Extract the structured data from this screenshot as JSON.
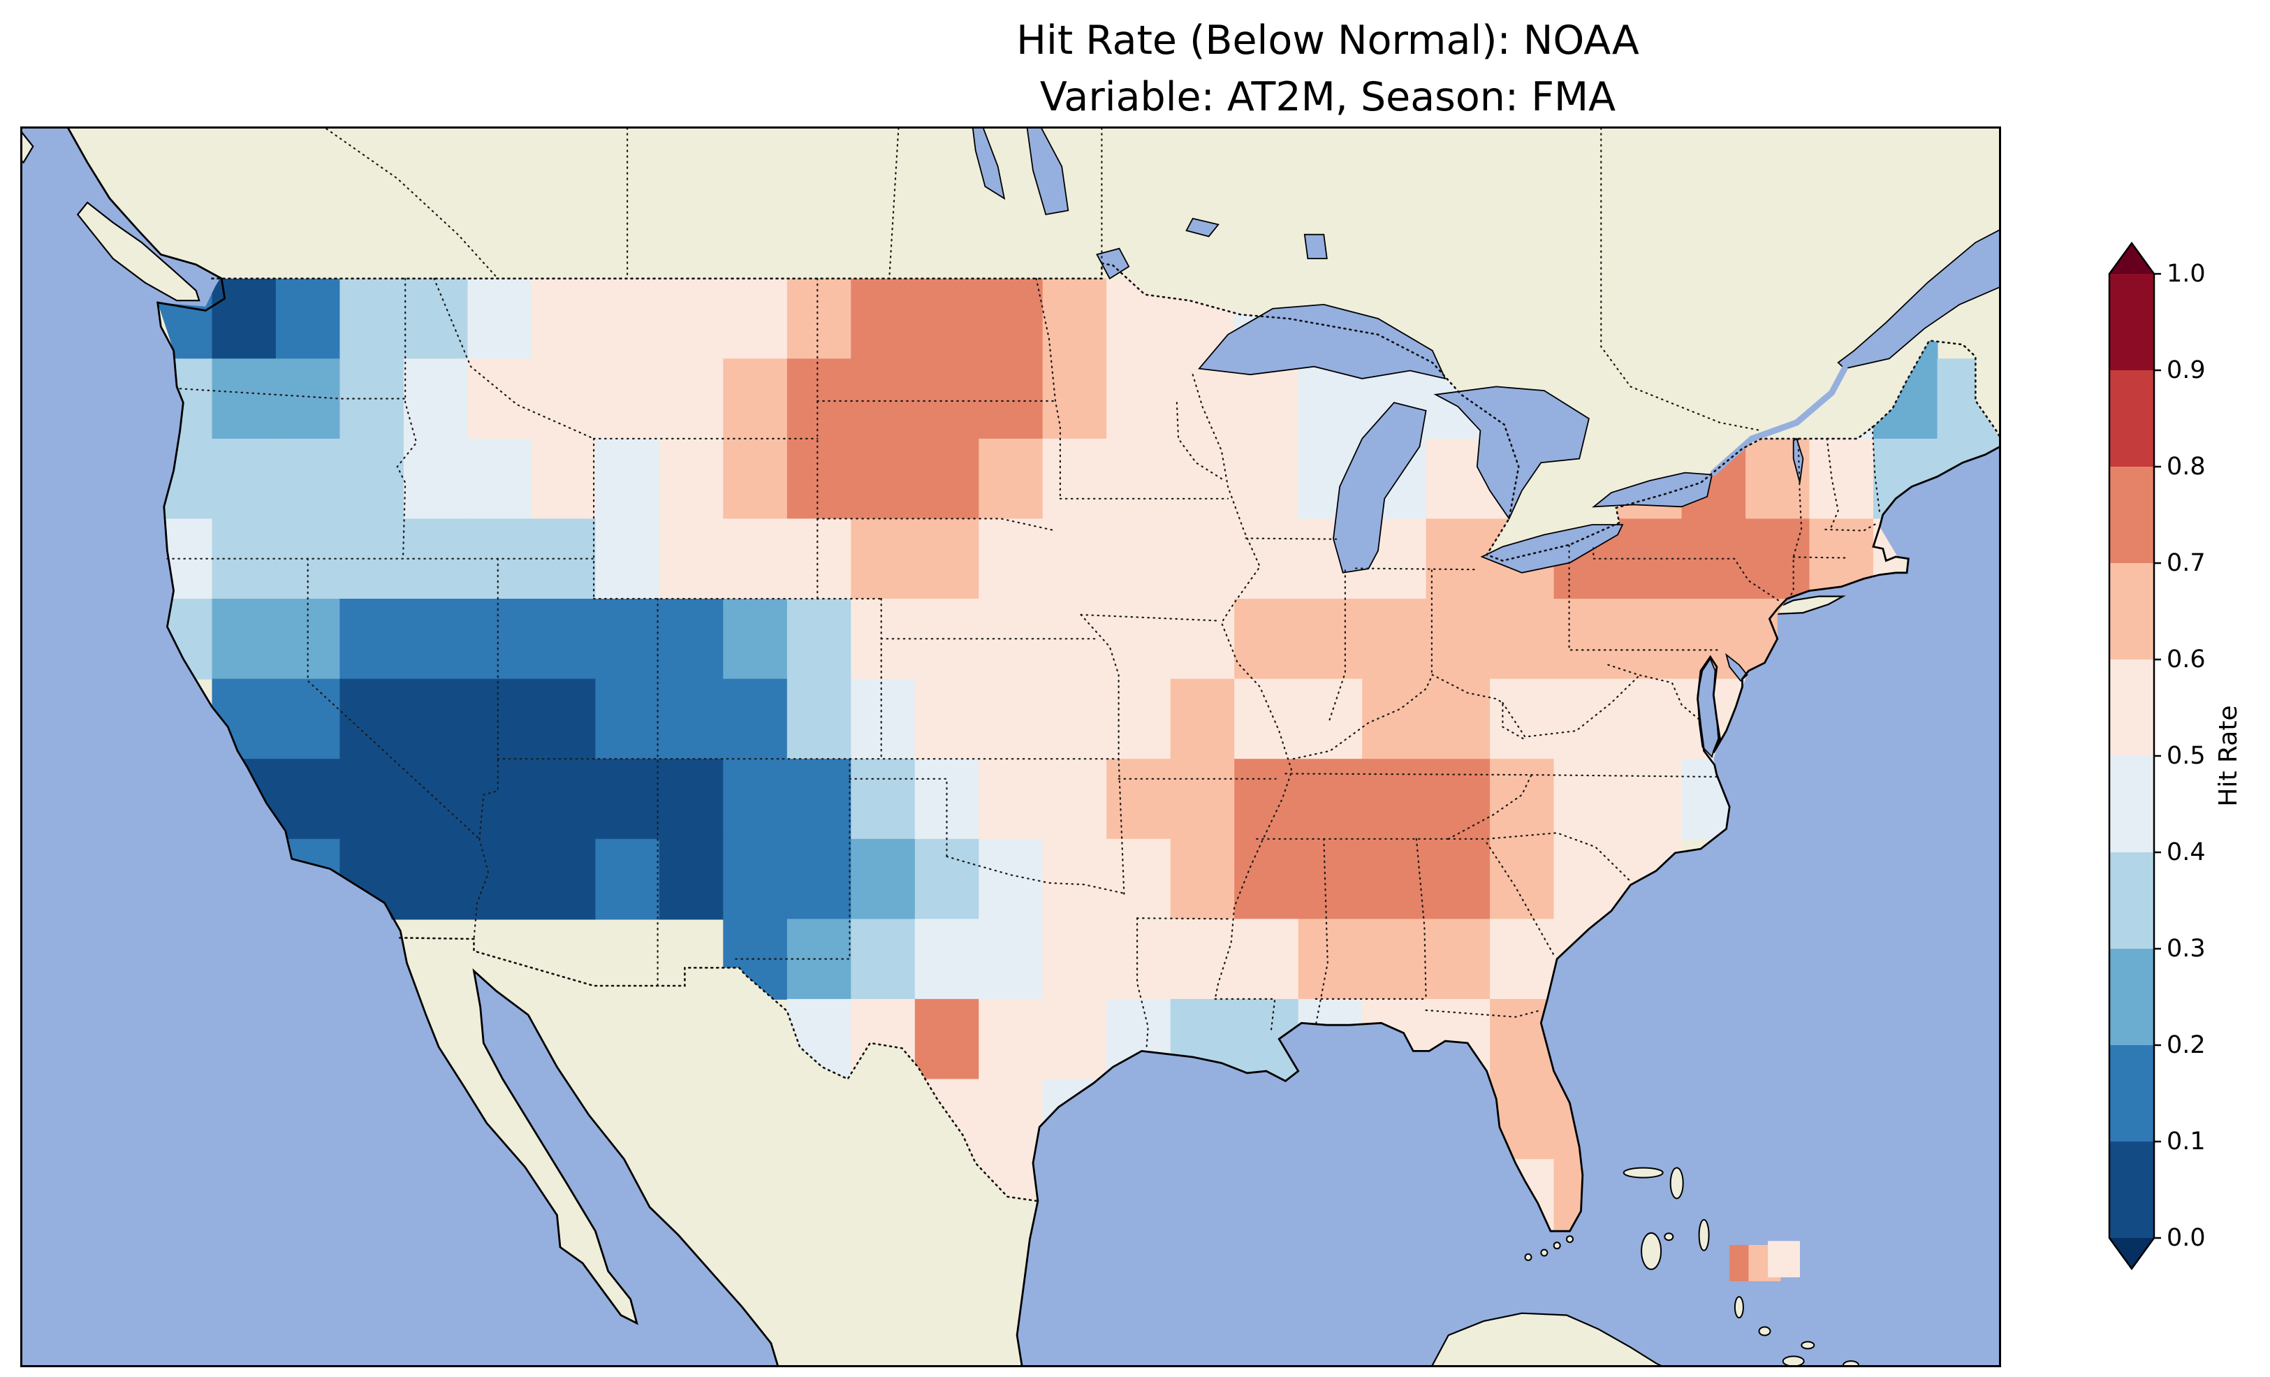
{
  "figure": {
    "title_line1": "Hit Rate (Below Normal): NOAA",
    "title_line2": "Variable: AT2M, Season: FMA"
  },
  "chart_data": {
    "type": "heatmap",
    "title": "Hit Rate (Below Normal): NOAA",
    "subtitle": "Variable: AT2M, Season: FMA",
    "metric": "Hit Rate (Below Normal)",
    "dataset": "NOAA",
    "variable": "AT2M",
    "season": "FMA",
    "colorbar": {
      "label": "Hit Rate",
      "ticks": [
        0.0,
        0.1,
        0.2,
        0.3,
        0.4,
        0.5,
        0.6,
        0.7,
        0.8,
        0.9,
        1.0
      ],
      "tick_labels": [
        "0.0",
        "0.1",
        "0.2",
        "0.3",
        "0.4",
        "0.5",
        "0.6",
        "0.7",
        "0.8",
        "0.9",
        "1.0"
      ],
      "boundaries": [
        0.0,
        0.1,
        0.2,
        0.3,
        0.4,
        0.5,
        0.6,
        0.7,
        0.8,
        0.9,
        1.0
      ],
      "extend": "both",
      "colors": [
        "#053061",
        "#134c85",
        "#2f79b5",
        "#6bacd1",
        "#b2d5e7",
        "#e5eef4",
        "#fbe9df",
        "#f9c0a5",
        "#e58368",
        "#c43c3c",
        "#8d0c25",
        "#67001f"
      ]
    },
    "map": {
      "ocean_color": "#95afdf",
      "land_color": "#efeeda",
      "lake_color": "#95afdf",
      "extent": {
        "lon_min": -129,
        "lon_max": -67,
        "lat_min": 21.8,
        "lat_max": 52.8
      }
    },
    "grid": {
      "lon_start": -125,
      "dlon": 2,
      "lat_start": 49,
      "dlat": 2,
      "ncols": 29,
      "nrows": 12,
      "values": [
        [
          0.15,
          0.05,
          0.15,
          0.3,
          0.35,
          0.45,
          0.55,
          0.55,
          0.55,
          0.55,
          0.65,
          0.75,
          0.75,
          0.75,
          0.6,
          0.55,
          0.55,
          0.45,
          0.35,
          0.35,
          0.45,
          null,
          null,
          null,
          null,
          null,
          null,
          0.25,
          null
        ],
        [
          0.35,
          0.2,
          0.25,
          0.35,
          0.45,
          0.55,
          0.55,
          0.55,
          0.55,
          0.6,
          0.7,
          0.75,
          0.75,
          0.7,
          0.6,
          0.55,
          0.55,
          0.5,
          0.45,
          0.4,
          0.45,
          0.4,
          null,
          null,
          null,
          null,
          0.45,
          0.25,
          0.3
        ],
        [
          0.35,
          0.3,
          0.35,
          0.3,
          0.4,
          0.45,
          0.5,
          0.45,
          0.5,
          0.6,
          0.7,
          0.75,
          0.7,
          0.65,
          0.55,
          0.55,
          0.55,
          0.5,
          0.45,
          0.4,
          0.5,
          0.55,
          0.6,
          0.65,
          0.7,
          0.6,
          0.5,
          0.35,
          0.35
        ],
        [
          0.4,
          0.35,
          0.3,
          0.3,
          0.35,
          0.35,
          0.35,
          0.45,
          0.5,
          0.55,
          0.55,
          0.6,
          0.6,
          0.55,
          0.55,
          0.55,
          0.55,
          0.5,
          0.5,
          0.55,
          0.6,
          0.65,
          0.7,
          0.75,
          0.75,
          0.7,
          0.6,
          0.5,
          null
        ],
        [
          0.3,
          0.25,
          0.2,
          0.15,
          0.1,
          0.1,
          0.1,
          0.1,
          0.15,
          0.2,
          0.35,
          0.5,
          0.55,
          0.55,
          0.55,
          0.55,
          0.55,
          0.6,
          0.6,
          0.65,
          0.6,
          0.65,
          0.6,
          0.65,
          0.6,
          0.6,
          null,
          null,
          null
        ],
        [
          null,
          0.1,
          0.1,
          0.05,
          0.05,
          0.05,
          0.05,
          0.1,
          0.1,
          0.15,
          0.3,
          0.45,
          0.55,
          0.55,
          0.55,
          0.55,
          0.6,
          0.55,
          0.55,
          0.6,
          0.6,
          0.55,
          0.55,
          0.55,
          0.5,
          0.45,
          null,
          null,
          null
        ],
        [
          null,
          0.05,
          0.05,
          0.05,
          0.05,
          0.05,
          0.05,
          0.05,
          0.05,
          0.1,
          0.15,
          0.3,
          0.45,
          0.55,
          0.55,
          0.6,
          0.65,
          0.7,
          0.75,
          0.75,
          0.7,
          0.6,
          0.55,
          0.55,
          0.45,
          null,
          null,
          null,
          null
        ],
        [
          null,
          null,
          0.15,
          0.05,
          0.05,
          0.05,
          0.05,
          0.1,
          0.05,
          0.1,
          0.15,
          0.25,
          0.35,
          0.45,
          0.5,
          0.55,
          0.6,
          0.7,
          0.75,
          0.75,
          0.75,
          0.65,
          0.55,
          0.5,
          null,
          null,
          null,
          null,
          null
        ],
        [
          null,
          null,
          null,
          null,
          null,
          null,
          null,
          null,
          null,
          0.15,
          0.2,
          0.3,
          0.4,
          0.45,
          0.5,
          0.5,
          0.5,
          0.55,
          0.65,
          0.6,
          0.6,
          0.55,
          0.5,
          null,
          null,
          null,
          null,
          null,
          null
        ],
        [
          null,
          null,
          null,
          null,
          null,
          null,
          null,
          null,
          null,
          null,
          0.4,
          0.55,
          0.7,
          0.55,
          0.5,
          0.45,
          0.35,
          0.3,
          0.45,
          0.55,
          0.55,
          0.6,
          0.6,
          null,
          null,
          null,
          null,
          null,
          null
        ],
        [
          null,
          null,
          null,
          null,
          null,
          null,
          null,
          null,
          null,
          null,
          null,
          null,
          0.55,
          0.5,
          0.45,
          null,
          null,
          null,
          null,
          null,
          0.55,
          0.65,
          0.6,
          null,
          null,
          null,
          null,
          null,
          null
        ],
        [
          null,
          null,
          null,
          null,
          null,
          null,
          null,
          null,
          null,
          null,
          null,
          null,
          null,
          0.5,
          null,
          null,
          null,
          null,
          null,
          null,
          null,
          0.55,
          0.6,
          null,
          null,
          null,
          null,
          null,
          null
        ]
      ]
    },
    "extra_cells": [
      {
        "lon": -75.0,
        "lat": 24.4,
        "value": 0.7
      },
      {
        "lon": -74.4,
        "lat": 24.4,
        "value": 0.62
      },
      {
        "lon": -73.8,
        "lat": 24.5,
        "value": 0.55
      }
    ]
  }
}
